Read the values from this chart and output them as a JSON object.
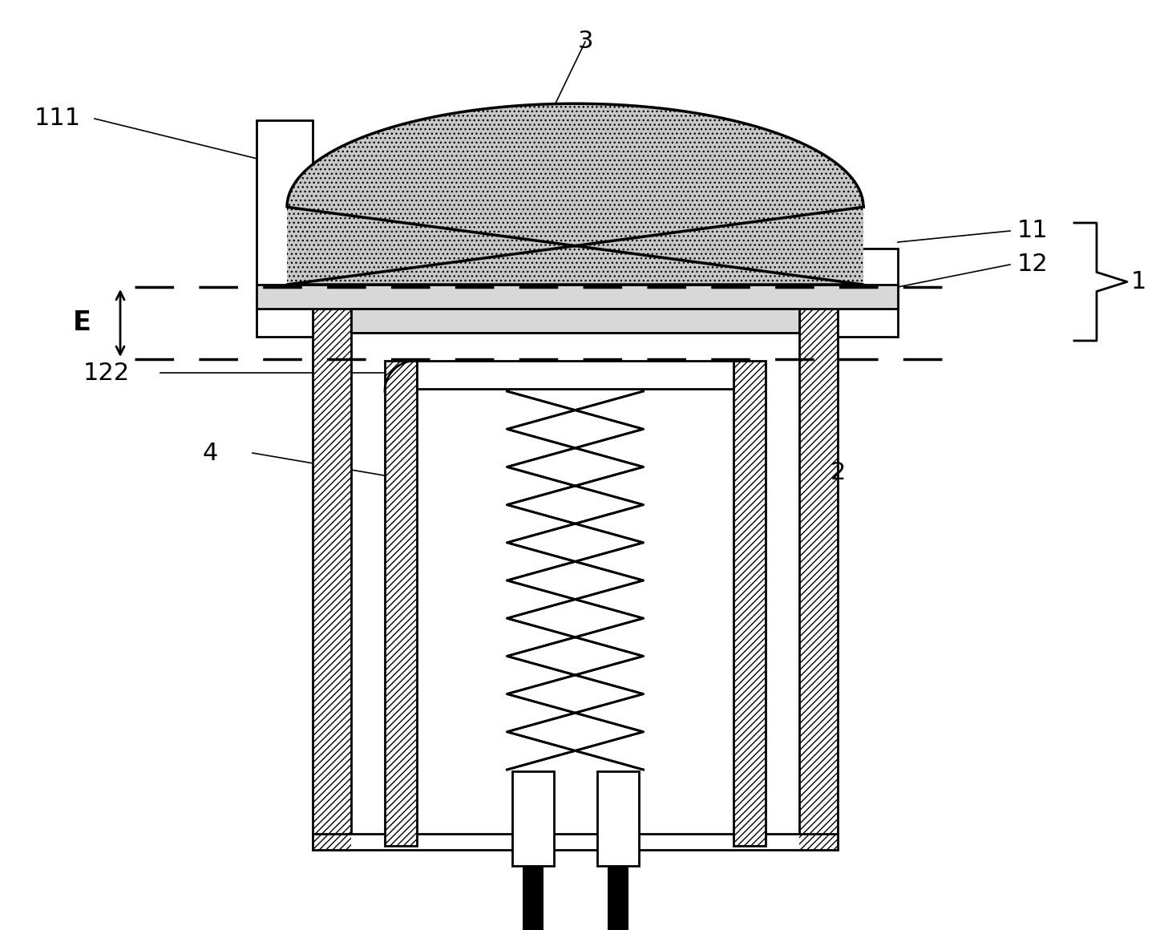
{
  "bg_color": "#ffffff",
  "line_color": "#000000",
  "dot_fill_color": "#c8c8c8",
  "light_gray": "#d8d8d8",
  "lw": 2.0,
  "lw_thin": 1.2
}
